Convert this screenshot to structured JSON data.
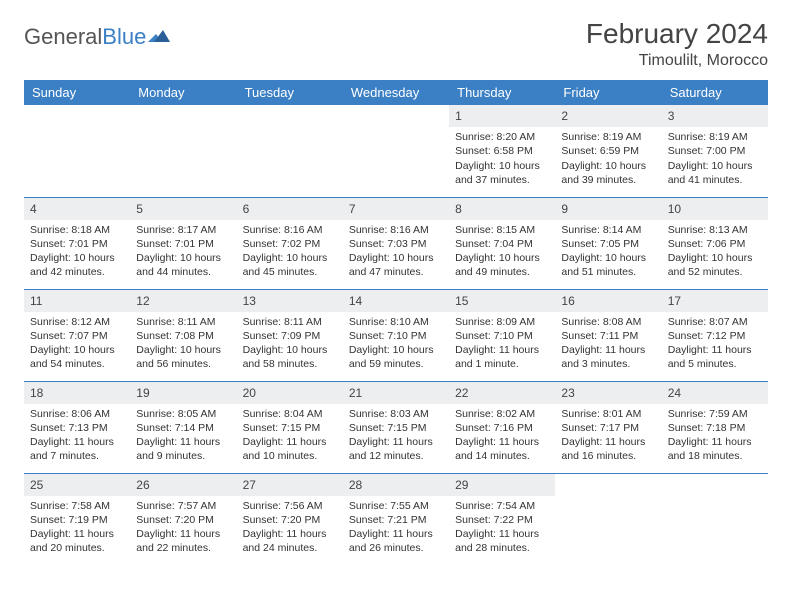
{
  "brand": {
    "part1": "General",
    "part2": "Blue"
  },
  "title": "February 2024",
  "location": "Timoulilt, Morocco",
  "colors": {
    "header_bg": "#3b7fc4",
    "header_fg": "#ffffff",
    "rule": "#3b7fc4",
    "daynum_bg": "#eceef0",
    "text": "#333333"
  },
  "daysOfWeek": [
    "Sunday",
    "Monday",
    "Tuesday",
    "Wednesday",
    "Thursday",
    "Friday",
    "Saturday"
  ],
  "weeks": [
    [
      null,
      null,
      null,
      null,
      {
        "n": "1",
        "sr": "8:20 AM",
        "ss": "6:58 PM",
        "dl": "10 hours and 37 minutes."
      },
      {
        "n": "2",
        "sr": "8:19 AM",
        "ss": "6:59 PM",
        "dl": "10 hours and 39 minutes."
      },
      {
        "n": "3",
        "sr": "8:19 AM",
        "ss": "7:00 PM",
        "dl": "10 hours and 41 minutes."
      }
    ],
    [
      {
        "n": "4",
        "sr": "8:18 AM",
        "ss": "7:01 PM",
        "dl": "10 hours and 42 minutes."
      },
      {
        "n": "5",
        "sr": "8:17 AM",
        "ss": "7:01 PM",
        "dl": "10 hours and 44 minutes."
      },
      {
        "n": "6",
        "sr": "8:16 AM",
        "ss": "7:02 PM",
        "dl": "10 hours and 45 minutes."
      },
      {
        "n": "7",
        "sr": "8:16 AM",
        "ss": "7:03 PM",
        "dl": "10 hours and 47 minutes."
      },
      {
        "n": "8",
        "sr": "8:15 AM",
        "ss": "7:04 PM",
        "dl": "10 hours and 49 minutes."
      },
      {
        "n": "9",
        "sr": "8:14 AM",
        "ss": "7:05 PM",
        "dl": "10 hours and 51 minutes."
      },
      {
        "n": "10",
        "sr": "8:13 AM",
        "ss": "7:06 PM",
        "dl": "10 hours and 52 minutes."
      }
    ],
    [
      {
        "n": "11",
        "sr": "8:12 AM",
        "ss": "7:07 PM",
        "dl": "10 hours and 54 minutes."
      },
      {
        "n": "12",
        "sr": "8:11 AM",
        "ss": "7:08 PM",
        "dl": "10 hours and 56 minutes."
      },
      {
        "n": "13",
        "sr": "8:11 AM",
        "ss": "7:09 PM",
        "dl": "10 hours and 58 minutes."
      },
      {
        "n": "14",
        "sr": "8:10 AM",
        "ss": "7:10 PM",
        "dl": "10 hours and 59 minutes."
      },
      {
        "n": "15",
        "sr": "8:09 AM",
        "ss": "7:10 PM",
        "dl": "11 hours and 1 minute."
      },
      {
        "n": "16",
        "sr": "8:08 AM",
        "ss": "7:11 PM",
        "dl": "11 hours and 3 minutes."
      },
      {
        "n": "17",
        "sr": "8:07 AM",
        "ss": "7:12 PM",
        "dl": "11 hours and 5 minutes."
      }
    ],
    [
      {
        "n": "18",
        "sr": "8:06 AM",
        "ss": "7:13 PM",
        "dl": "11 hours and 7 minutes."
      },
      {
        "n": "19",
        "sr": "8:05 AM",
        "ss": "7:14 PM",
        "dl": "11 hours and 9 minutes."
      },
      {
        "n": "20",
        "sr": "8:04 AM",
        "ss": "7:15 PM",
        "dl": "11 hours and 10 minutes."
      },
      {
        "n": "21",
        "sr": "8:03 AM",
        "ss": "7:15 PM",
        "dl": "11 hours and 12 minutes."
      },
      {
        "n": "22",
        "sr": "8:02 AM",
        "ss": "7:16 PM",
        "dl": "11 hours and 14 minutes."
      },
      {
        "n": "23",
        "sr": "8:01 AM",
        "ss": "7:17 PM",
        "dl": "11 hours and 16 minutes."
      },
      {
        "n": "24",
        "sr": "7:59 AM",
        "ss": "7:18 PM",
        "dl": "11 hours and 18 minutes."
      }
    ],
    [
      {
        "n": "25",
        "sr": "7:58 AM",
        "ss": "7:19 PM",
        "dl": "11 hours and 20 minutes."
      },
      {
        "n": "26",
        "sr": "7:57 AM",
        "ss": "7:20 PM",
        "dl": "11 hours and 22 minutes."
      },
      {
        "n": "27",
        "sr": "7:56 AM",
        "ss": "7:20 PM",
        "dl": "11 hours and 24 minutes."
      },
      {
        "n": "28",
        "sr": "7:55 AM",
        "ss": "7:21 PM",
        "dl": "11 hours and 26 minutes."
      },
      {
        "n": "29",
        "sr": "7:54 AM",
        "ss": "7:22 PM",
        "dl": "11 hours and 28 minutes."
      },
      null,
      null
    ]
  ],
  "labels": {
    "sunrise": "Sunrise: ",
    "sunset": "Sunset: ",
    "daylight": "Daylight: "
  }
}
